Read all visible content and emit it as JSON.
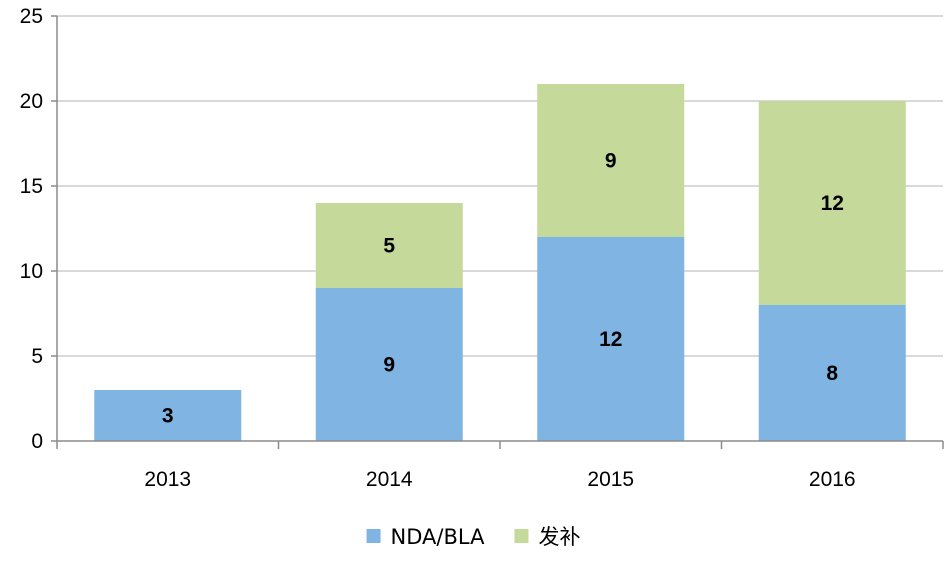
{
  "chart_data": {
    "type": "bar",
    "stacked": true,
    "title": "",
    "xlabel": "",
    "ylabel": "",
    "categories": [
      "2013",
      "2014",
      "2015",
      "2016"
    ],
    "series": [
      {
        "name": "NDA/BLA",
        "values": [
          3,
          9,
          12,
          8
        ],
        "data_labels": [
          "3",
          "9",
          "12",
          "8"
        ],
        "color": "#80B4E2"
      },
      {
        "name": "发补",
        "values": [
          0,
          5,
          9,
          12
        ],
        "data_labels": [
          "",
          "5",
          "9",
          "12"
        ],
        "color": "#C5D99A"
      }
    ],
    "ylim": [
      0,
      25
    ],
    "yticks": [
      "0",
      "5",
      "10",
      "15",
      "20",
      "25"
    ],
    "grid": true,
    "legend_position": "bottom"
  },
  "colors": {
    "grid": "#D9D9D9",
    "axis": "#8C8C8C"
  }
}
